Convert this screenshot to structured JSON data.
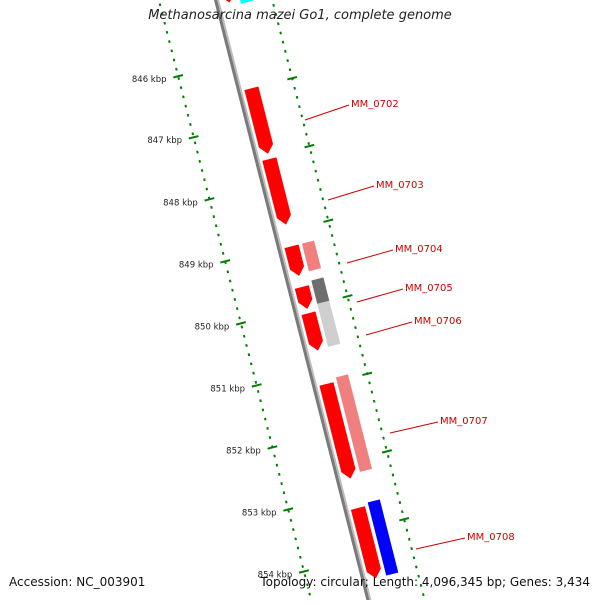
{
  "title": "Methanosarcina mazei Go1, complete genome",
  "footer": {
    "accession": "Accession: NC_003901",
    "stats": "Topology: circular; Length: 4,096,345 bp; Genes: 3,434"
  },
  "ticks": [
    "846 kbp",
    "847 kbp",
    "848 kbp",
    "849 kbp",
    "850 kbp",
    "851 kbp",
    "852 kbp",
    "853 kbp",
    "854 kbp"
  ],
  "genes": [
    "MM_0702",
    "MM_0703",
    "MM_0704",
    "MM_0705",
    "MM_0706",
    "MM_0707",
    "MM_0708"
  ],
  "colors": {
    "backbone": "#7a7a7a",
    "cds": "#ff0000",
    "cds_light": "#f08080",
    "gene_label": "#cc0000",
    "tick": "#008000",
    "gray_dark": "#6e6e6e",
    "gray_light": "#cfcfcf",
    "blue": "#0000ff",
    "cyan": "#00ffff"
  }
}
